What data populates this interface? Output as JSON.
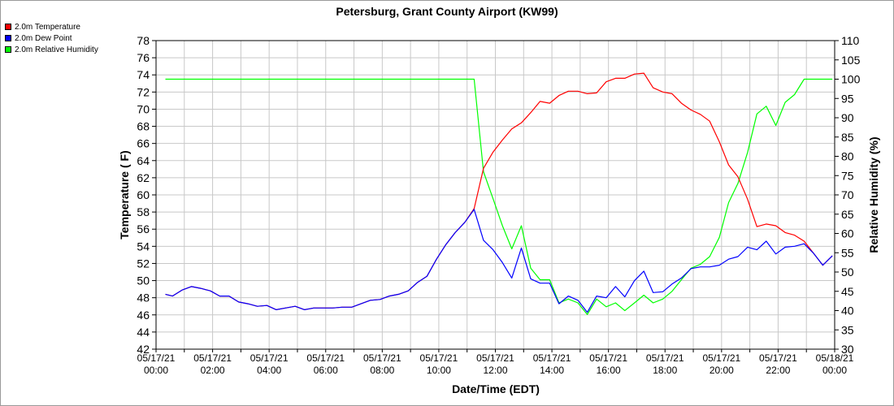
{
  "chart_data": {
    "type": "line",
    "title": "Petersburg, Grant County Airport (KW99)",
    "xlabel": "Date/Time (EDT)",
    "ylabel_left": "Temperature ( F)",
    "ylabel_right": "Relative Humidity (%)",
    "ylim_left": [
      42,
      78
    ],
    "ylim_right": [
      30,
      110
    ],
    "yticks_left": [
      42,
      44,
      46,
      48,
      50,
      52,
      54,
      56,
      58,
      60,
      62,
      64,
      66,
      68,
      70,
      72,
      74,
      76,
      78
    ],
    "yticks_right": [
      30,
      35,
      40,
      45,
      50,
      55,
      60,
      65,
      70,
      75,
      80,
      85,
      90,
      95,
      100,
      105,
      110
    ],
    "xlim_hours": [
      0,
      24
    ],
    "xticks": [
      {
        "hour": 0,
        "date": "05/17/21",
        "time": "00:00"
      },
      {
        "hour": 2,
        "date": "05/17/21",
        "time": "02:00"
      },
      {
        "hour": 4,
        "date": "05/17/21",
        "time": "04:00"
      },
      {
        "hour": 6,
        "date": "05/17/21",
        "time": "06:00"
      },
      {
        "hour": 8,
        "date": "05/17/21",
        "time": "08:00"
      },
      {
        "hour": 10,
        "date": "05/17/21",
        "time": "10:00"
      },
      {
        "hour": 12,
        "date": "05/17/21",
        "time": "12:00"
      },
      {
        "hour": 14,
        "date": "05/17/21",
        "time": "14:00"
      },
      {
        "hour": 16,
        "date": "05/17/21",
        "time": "16:00"
      },
      {
        "hour": 18,
        "date": "05/17/21",
        "time": "18:00"
      },
      {
        "hour": 20,
        "date": "05/17/21",
        "time": "20:00"
      },
      {
        "hour": 22,
        "date": "05/17/21",
        "time": "22:00"
      },
      {
        "hour": 0,
        "date": "05/18/21",
        "time": "00:00",
        "position_hour": 24
      }
    ],
    "grid": true,
    "legend_position": "top-left",
    "series": [
      {
        "name": "2.0m Temperature",
        "color": "#ff0000",
        "axis": "left",
        "points": [
          [
            0.33,
            48.4
          ],
          [
            0.58,
            48.2
          ],
          [
            0.92,
            48.9
          ],
          [
            1.25,
            49.3
          ],
          [
            1.58,
            49.1
          ],
          [
            1.92,
            48.8
          ],
          [
            2.25,
            48.2
          ],
          [
            2.58,
            48.2
          ],
          [
            2.92,
            47.5
          ],
          [
            3.25,
            47.3
          ],
          [
            3.58,
            47.0
          ],
          [
            3.92,
            47.1
          ],
          [
            4.25,
            46.6
          ],
          [
            4.58,
            46.8
          ],
          [
            4.92,
            47.0
          ],
          [
            5.25,
            46.6
          ],
          [
            5.58,
            46.8
          ],
          [
            5.92,
            46.8
          ],
          [
            6.25,
            46.8
          ],
          [
            6.58,
            46.9
          ],
          [
            6.92,
            46.9
          ],
          [
            7.25,
            47.3
          ],
          [
            7.58,
            47.7
          ],
          [
            7.92,
            47.8
          ],
          [
            8.25,
            48.2
          ],
          [
            8.58,
            48.4
          ],
          [
            8.92,
            48.8
          ],
          [
            9.25,
            49.8
          ],
          [
            9.58,
            50.5
          ],
          [
            9.92,
            52.5
          ],
          [
            10.25,
            54.2
          ],
          [
            10.58,
            55.6
          ],
          [
            10.92,
            56.8
          ],
          [
            11.25,
            58.4
          ],
          [
            11.58,
            63.1
          ],
          [
            11.92,
            65.0
          ],
          [
            12.25,
            66.4
          ],
          [
            12.58,
            67.7
          ],
          [
            12.92,
            68.4
          ],
          [
            13.25,
            69.6
          ],
          [
            13.58,
            70.9
          ],
          [
            13.92,
            70.7
          ],
          [
            14.25,
            71.6
          ],
          [
            14.58,
            72.1
          ],
          [
            14.92,
            72.1
          ],
          [
            15.25,
            71.8
          ],
          [
            15.58,
            71.9
          ],
          [
            15.92,
            73.2
          ],
          [
            16.25,
            73.6
          ],
          [
            16.58,
            73.6
          ],
          [
            16.92,
            74.1
          ],
          [
            17.25,
            74.2
          ],
          [
            17.58,
            72.5
          ],
          [
            17.92,
            72.0
          ],
          [
            18.25,
            71.8
          ],
          [
            18.58,
            70.7
          ],
          [
            18.92,
            69.9
          ],
          [
            19.25,
            69.4
          ],
          [
            19.58,
            68.6
          ],
          [
            19.92,
            66.2
          ],
          [
            20.25,
            63.5
          ],
          [
            20.58,
            62.1
          ],
          [
            20.92,
            59.5
          ],
          [
            21.25,
            56.3
          ],
          [
            21.58,
            56.6
          ],
          [
            21.92,
            56.4
          ],
          [
            22.25,
            55.6
          ],
          [
            22.58,
            55.3
          ],
          [
            22.92,
            54.6
          ],
          [
            23.25,
            53.2
          ],
          [
            23.58,
            51.8
          ],
          [
            23.92,
            52.9
          ]
        ]
      },
      {
        "name": "2.0m Dew Point",
        "color": "#0000ff",
        "axis": "left",
        "points": [
          [
            0.33,
            48.4
          ],
          [
            0.58,
            48.2
          ],
          [
            0.92,
            48.9
          ],
          [
            1.25,
            49.3
          ],
          [
            1.58,
            49.1
          ],
          [
            1.92,
            48.8
          ],
          [
            2.25,
            48.2
          ],
          [
            2.58,
            48.2
          ],
          [
            2.92,
            47.5
          ],
          [
            3.25,
            47.3
          ],
          [
            3.58,
            47.0
          ],
          [
            3.92,
            47.1
          ],
          [
            4.25,
            46.6
          ],
          [
            4.58,
            46.8
          ],
          [
            4.92,
            47.0
          ],
          [
            5.25,
            46.6
          ],
          [
            5.58,
            46.8
          ],
          [
            5.92,
            46.8
          ],
          [
            6.25,
            46.8
          ],
          [
            6.58,
            46.9
          ],
          [
            6.92,
            46.9
          ],
          [
            7.25,
            47.3
          ],
          [
            7.58,
            47.7
          ],
          [
            7.92,
            47.8
          ],
          [
            8.25,
            48.2
          ],
          [
            8.58,
            48.4
          ],
          [
            8.92,
            48.8
          ],
          [
            9.25,
            49.8
          ],
          [
            9.58,
            50.5
          ],
          [
            9.92,
            52.5
          ],
          [
            10.25,
            54.2
          ],
          [
            10.58,
            55.6
          ],
          [
            10.92,
            56.8
          ],
          [
            11.25,
            58.3
          ],
          [
            11.58,
            54.7
          ],
          [
            11.92,
            53.6
          ],
          [
            12.25,
            52.1
          ],
          [
            12.58,
            50.3
          ],
          [
            12.92,
            53.8
          ],
          [
            13.25,
            50.2
          ],
          [
            13.58,
            49.7
          ],
          [
            13.92,
            49.7
          ],
          [
            14.25,
            47.3
          ],
          [
            14.58,
            48.2
          ],
          [
            14.92,
            47.7
          ],
          [
            15.25,
            46.3
          ],
          [
            15.58,
            48.2
          ],
          [
            15.92,
            48.0
          ],
          [
            16.25,
            49.3
          ],
          [
            16.58,
            48.1
          ],
          [
            16.92,
            50.0
          ],
          [
            17.25,
            51.1
          ],
          [
            17.58,
            48.6
          ],
          [
            17.92,
            48.7
          ],
          [
            18.25,
            49.6
          ],
          [
            18.58,
            50.3
          ],
          [
            18.92,
            51.4
          ],
          [
            19.25,
            51.6
          ],
          [
            19.58,
            51.6
          ],
          [
            19.92,
            51.8
          ],
          [
            20.25,
            52.5
          ],
          [
            20.58,
            52.8
          ],
          [
            20.92,
            53.9
          ],
          [
            21.25,
            53.6
          ],
          [
            21.58,
            54.6
          ],
          [
            21.92,
            53.1
          ],
          [
            22.25,
            53.9
          ],
          [
            22.58,
            54.0
          ],
          [
            22.92,
            54.3
          ],
          [
            23.25,
            53.2
          ],
          [
            23.58,
            51.8
          ],
          [
            23.92,
            52.9
          ]
        ]
      },
      {
        "name": "2.0m Relative Humidity",
        "color": "#00ff00",
        "axis": "right",
        "points": [
          [
            0.33,
            100
          ],
          [
            11.25,
            100
          ],
          [
            11.58,
            76
          ],
          [
            11.92,
            69
          ],
          [
            12.25,
            62
          ],
          [
            12.58,
            56
          ],
          [
            12.92,
            62
          ],
          [
            13.25,
            51
          ],
          [
            13.58,
            48
          ],
          [
            13.92,
            48
          ],
          [
            14.25,
            42
          ],
          [
            14.58,
            43
          ],
          [
            14.92,
            42
          ],
          [
            15.25,
            39
          ],
          [
            15.58,
            43
          ],
          [
            15.92,
            41
          ],
          [
            16.25,
            42
          ],
          [
            16.58,
            40
          ],
          [
            16.92,
            42
          ],
          [
            17.25,
            44
          ],
          [
            17.58,
            42
          ],
          [
            17.92,
            43
          ],
          [
            18.25,
            45
          ],
          [
            18.58,
            48
          ],
          [
            18.92,
            51
          ],
          [
            19.25,
            52
          ],
          [
            19.58,
            54
          ],
          [
            19.92,
            59
          ],
          [
            20.25,
            68
          ],
          [
            20.58,
            73
          ],
          [
            20.92,
            81
          ],
          [
            21.25,
            91
          ],
          [
            21.58,
            93
          ],
          [
            21.92,
            88
          ],
          [
            22.25,
            94
          ],
          [
            22.58,
            96
          ],
          [
            22.92,
            100
          ],
          [
            23.92,
            100
          ]
        ]
      }
    ]
  }
}
